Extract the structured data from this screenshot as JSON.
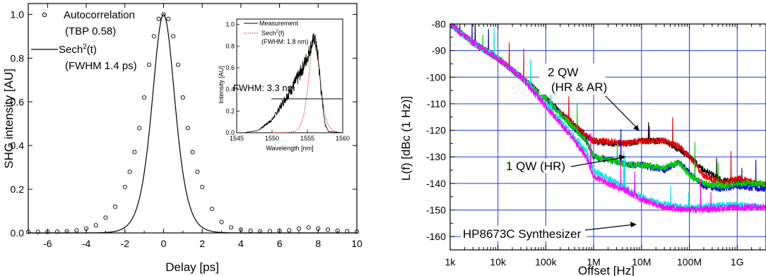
{
  "left_chart": {
    "xlabel": "Delay [ps]",
    "ylabel": "SHG intensity [AU]",
    "xlim": [
      -7,
      10
    ],
    "ylim": [
      0,
      1.05
    ],
    "xticks": [
      "-6",
      "-4",
      "-2",
      "0",
      "2",
      "4",
      "6",
      "8",
      "10"
    ],
    "yticks": [
      "0.0",
      "0.2",
      "0.4",
      "0.6",
      "0.8",
      "1.0"
    ],
    "legend": {
      "autocorr_label": "Autocorrelation",
      "autocorr_sub": "(TBP 0.58)",
      "sech_label": "Sech",
      "sech_sup": "2",
      "sech_arg": "(t)",
      "sech_sub": "(FWHM 1.4 ps)"
    },
    "inset": {
      "xlabel": "Wavelength [nm]",
      "ylabel": "Intensity [AU]",
      "xticks": [
        "1545",
        "1550",
        "1555",
        "1560"
      ],
      "yticks": [
        "0.0",
        "0.2",
        "0.4",
        "0.6",
        "0.8",
        "1.0"
      ],
      "legend_meas": "Measurement",
      "legend_sech": "Sech",
      "legend_sech_sup": "2",
      "legend_sech_arg": "(f)",
      "legend_sech_sub": "(FWHM: 1.8 nm)",
      "fwhm_label": "FWHM: 3.3 nm"
    }
  },
  "right_chart": {
    "xlabel": "Offset [Hz]",
    "ylabel": "L(f) [dBc (1 Hz)]",
    "xticks": [
      "1k",
      "10k",
      "100k",
      "1M",
      "10M",
      "100M",
      "1G"
    ],
    "yticks": [
      "-80",
      "-90",
      "-100",
      "-110",
      "-120",
      "-130",
      "-140",
      "-150",
      "-160"
    ],
    "annotations": {
      "qw2_line1": "2 QW",
      "qw2_line2": "(HR & AR)",
      "qw1": "1 QW (HR)",
      "synth": "HP8673C Synthesizer"
    }
  },
  "chart_data": [
    {
      "type": "scatter",
      "xlabel": "Delay [ps]",
      "ylabel": "SHG intensity [AU]",
      "xlim": [
        -7,
        10
      ],
      "ylim": [
        0,
        1.05
      ],
      "grid": false,
      "legend_position": "top-left",
      "series": [
        {
          "name": "Autocorrelation (TBP 0.58)",
          "style": "open circles",
          "x": [
            -7,
            -6.5,
            -6,
            -5.5,
            -5,
            -4.5,
            -4,
            -3.5,
            -3,
            -2.5,
            -2,
            -1.75,
            -1.5,
            -1.25,
            -1,
            -0.75,
            -0.5,
            -0.25,
            0,
            0.25,
            0.5,
            0.75,
            1,
            1.25,
            1.5,
            1.75,
            2,
            2.5,
            3,
            3.5,
            4,
            4.5,
            5,
            5.5,
            6,
            6.5,
            7,
            7.5,
            8,
            8.5,
            9,
            9.5,
            10
          ],
          "y": [
            0.005,
            0.005,
            0.005,
            0.006,
            0.008,
            0.012,
            0.02,
            0.035,
            0.07,
            0.12,
            0.21,
            0.28,
            0.37,
            0.48,
            0.62,
            0.77,
            0.9,
            0.98,
            1.0,
            0.98,
            0.9,
            0.77,
            0.62,
            0.48,
            0.37,
            0.28,
            0.21,
            0.11,
            0.05,
            0.025,
            0.015,
            0.01,
            0.008,
            0.008,
            0.01,
            0.012,
            0.02,
            0.025,
            0.02,
            0.015,
            0.01,
            0.008,
            0.006
          ]
        },
        {
          "name": "Sech²(t) (FWHM 1.4 ps)",
          "style": "line",
          "function": "sech2",
          "fwhm": 1.4,
          "peak": 1.0
        }
      ]
    },
    {
      "type": "line",
      "title": "inset",
      "xlabel": "Wavelength [nm]",
      "ylabel": "Intensity [AU]",
      "xlim": [
        1545,
        1560
      ],
      "ylim": [
        0,
        1.05
      ],
      "series": [
        {
          "name": "Measurement",
          "x": [
            1546,
            1548,
            1550,
            1551,
            1552,
            1553,
            1554,
            1555,
            1555.5,
            1556,
            1556.5,
            1557,
            1557.5,
            1558,
            1560
          ],
          "y": [
            0.0,
            0.02,
            0.12,
            0.22,
            0.33,
            0.43,
            0.55,
            0.7,
            0.8,
            0.88,
            0.7,
            0.35,
            0.08,
            0.01,
            0.0
          ]
        },
        {
          "name": "Sech²(f) (FWHM: 1.8 nm)",
          "style": "dotted",
          "function": "sech2",
          "center": 1556,
          "fwhm": 1.8,
          "peak": 0.9
        }
      ],
      "annotations": [
        "FWHM: 3.3 nm"
      ]
    },
    {
      "type": "line",
      "xlabel": "Offset [Hz]",
      "ylabel": "L(f) [dBc (1 Hz)]",
      "xscale": "log",
      "xlim": [
        1000,
        4000000000
      ],
      "ylim": [
        -165,
        -80
      ],
      "grid": true,
      "series": [
        {
          "name": "2 QW (HR & AR)",
          "color": "#000000",
          "x": [
            1000,
            3000,
            10000,
            30000,
            100000,
            300000,
            700000,
            1000000,
            2000000,
            5000000,
            10000000,
            30000000,
            60000000,
            100000000,
            200000000,
            500000000,
            1000000000,
            4000000000
          ],
          "y": [
            -80,
            -87,
            -93,
            -100,
            -108,
            -116,
            -122,
            -124,
            -125,
            -125,
            -124,
            -124,
            -127,
            -130,
            -135,
            -139,
            -139,
            -141
          ]
        },
        {
          "name": "2 QW (HR & AR)",
          "color": "#ee0000",
          "x": [
            1000,
            3000,
            10000,
            30000,
            100000,
            300000,
            700000,
            1000000,
            2000000,
            5000000,
            10000000,
            30000000,
            60000000,
            100000000,
            200000000,
            500000000,
            1000000000,
            4000000000
          ],
          "y": [
            -80,
            -87,
            -93,
            -100,
            -108,
            -116,
            -122,
            -124,
            -124,
            -125,
            -124,
            -124,
            -126,
            -130,
            -137,
            -140,
            -138,
            -141
          ]
        },
        {
          "name": "1 QW (HR)",
          "color": "#0000ee",
          "x": [
            1000,
            3000,
            10000,
            30000,
            100000,
            300000,
            700000,
            1000000,
            2000000,
            5000000,
            10000000,
            30000000,
            60000000,
            100000000,
            200000000,
            500000000,
            1000000000,
            4000000000
          ],
          "y": [
            -80,
            -87,
            -93,
            -100,
            -108,
            -117,
            -124,
            -130,
            -131,
            -133,
            -133,
            -135,
            -132,
            -136,
            -141,
            -142,
            -141,
            -142
          ]
        },
        {
          "name": "1 QW (HR)",
          "color": "#00cc00",
          "x": [
            1000,
            3000,
            10000,
            30000,
            100000,
            300000,
            700000,
            1000000,
            2000000,
            5000000,
            10000000,
            30000000,
            60000000,
            100000000,
            200000000,
            500000000,
            1000000000,
            4000000000
          ],
          "y": [
            -80,
            -87,
            -93,
            -100,
            -108,
            -117,
            -124,
            -130,
            -131,
            -133,
            -133,
            -134,
            -132,
            -137,
            -140,
            -141,
            -140,
            -140
          ]
        },
        {
          "name": "HP8673C Synthesizer",
          "color": "#00e5e5",
          "x": [
            1000,
            3000,
            10000,
            30000,
            100000,
            300000,
            700000,
            1000000,
            2000000,
            5000000,
            10000000,
            30000000,
            100000000,
            1000000000,
            4000000000
          ],
          "y": [
            -80,
            -87,
            -93,
            -100,
            -110,
            -120,
            -128,
            -135,
            -138,
            -142,
            -145,
            -148,
            -149,
            -148,
            -149
          ]
        },
        {
          "name": "HP8673C Synthesizer",
          "color": "#ff00ff",
          "x": [
            1000,
            3000,
            10000,
            30000,
            100000,
            300000,
            700000,
            1000000,
            2000000,
            5000000,
            10000000,
            30000000,
            100000000,
            1000000000,
            4000000000
          ],
          "y": [
            -80,
            -87,
            -93,
            -100,
            -111,
            -121,
            -130,
            -137,
            -140,
            -143,
            -146,
            -149,
            -150,
            -149,
            -149
          ]
        }
      ]
    }
  ]
}
